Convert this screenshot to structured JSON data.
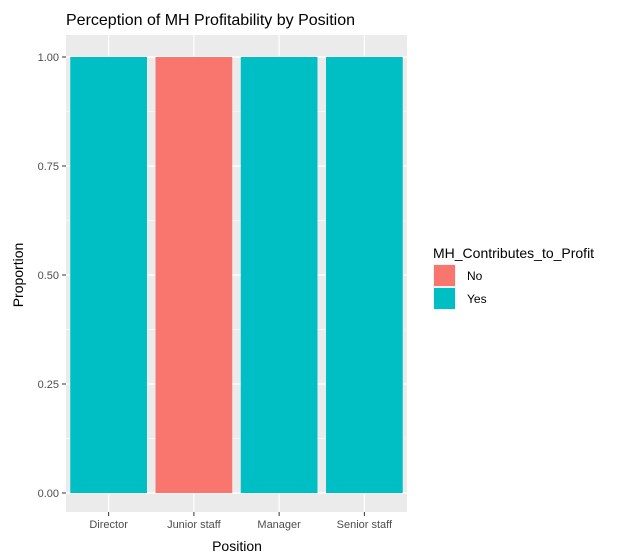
{
  "chart_data": {
    "type": "bar",
    "stacked": true,
    "title": "Perception of MH Profitability by Position",
    "xlabel": "Position",
    "ylabel": "Proportion",
    "categories": [
      "Director",
      "Junior staff",
      "Manager",
      "Senior staff"
    ],
    "series": [
      {
        "name": "No",
        "color": "#F8766D",
        "values": [
          0,
          1,
          0,
          0
        ]
      },
      {
        "name": "Yes",
        "color": "#00BFC4",
        "values": [
          1,
          0,
          1,
          1
        ]
      }
    ],
    "ylim": [
      0,
      1
    ],
    "yticks": [
      0,
      0.25,
      0.5,
      0.75,
      1
    ],
    "ytick_labels": [
      "0.00",
      "0.25",
      "0.50",
      "0.75",
      "1.00"
    ],
    "legend_title": "MH_Contributes_to_Profit",
    "legend_position": "right",
    "grid": true,
    "panel_background": "#EBEBEB"
  }
}
